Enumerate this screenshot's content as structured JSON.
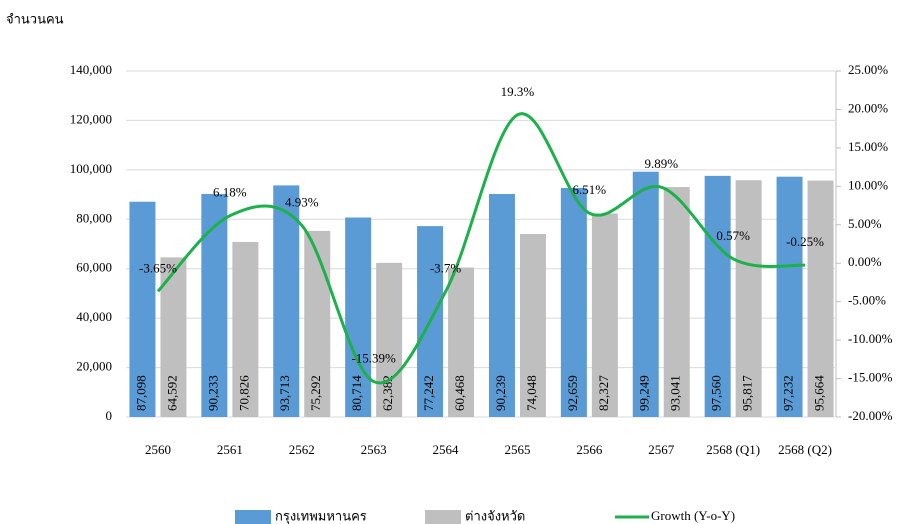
{
  "chart_data": {
    "type": "bar",
    "y_axis_label": "จำนวนคน",
    "categories": [
      "2560",
      "2561",
      "2562",
      "2563",
      "2564",
      "2565",
      "2566",
      "2567",
      "2568 (Q1)",
      "2568 (Q2)"
    ],
    "series": [
      {
        "name": "กรุงเทพมหานคร",
        "color": "#5b9bd5",
        "type": "bar",
        "values": [
          87098,
          90233,
          93713,
          80714,
          77242,
          90239,
          92659,
          99249,
          97560,
          97232
        ],
        "value_labels": [
          "87,098",
          "90,233",
          "93,713",
          "80,714",
          "77,242",
          "90,239",
          "92,659",
          "99,249",
          "97,560",
          "97,232"
        ]
      },
      {
        "name": "ต่างจังหวัด",
        "color": "#bfbfbf",
        "type": "bar",
        "values": [
          64592,
          70826,
          75292,
          62382,
          60468,
          74048,
          82327,
          93041,
          95817,
          95664
        ],
        "value_labels": [
          "64,592",
          "70,826",
          "75,292",
          "62,382",
          "60,468",
          "74,048",
          "82,327",
          "93,041",
          "95,817",
          "95,664"
        ]
      },
      {
        "name": "Growth (Y-o-Y)",
        "color": "#1db04b",
        "type": "line",
        "axis": "y2",
        "values": [
          -3.65,
          6.18,
          4.93,
          -15.39,
          -3.7,
          19.3,
          6.51,
          9.89,
          0.57,
          -0.25
        ],
        "value_labels": [
          "-3.65%",
          "6.18%",
          "4.93%",
          "-15.39%",
          "-3.7%",
          "19.3%",
          "6.51%",
          "9.89%",
          "0.57%",
          "-0.25%"
        ]
      }
    ],
    "ylim": [
      0,
      140000
    ],
    "yticks": [
      0,
      {
        "value": 20000,
        "label": "20,000"
      },
      {
        "value": 40000,
        "label": "40,000"
      },
      {
        "value": 60000,
        "label": "60,000"
      },
      {
        "value": 80000,
        "label": "80,000"
      },
      {
        "value": 100000,
        "label": "100,000"
      },
      {
        "value": 120000,
        "label": "120,000"
      },
      {
        "value": 140000,
        "label": "140,000"
      }
    ],
    "y2lim": [
      -20,
      25
    ],
    "y2ticks": [
      {
        "value": -20,
        "label": "-20.00%"
      },
      {
        "value": -15,
        "label": "-15.00%"
      },
      {
        "value": -10,
        "label": "-10.00%"
      },
      {
        "value": -5,
        "label": "-5.00%"
      },
      {
        "value": 0,
        "label": "0.00%"
      },
      {
        "value": 5,
        "label": "5.00%"
      },
      {
        "value": 10,
        "label": "10.00%"
      },
      {
        "value": 15,
        "label": "15.00%"
      },
      {
        "value": 20,
        "label": "20.00%"
      },
      {
        "value": 25,
        "label": "25.00%"
      }
    ],
    "grid": true,
    "legend": "bottom"
  }
}
